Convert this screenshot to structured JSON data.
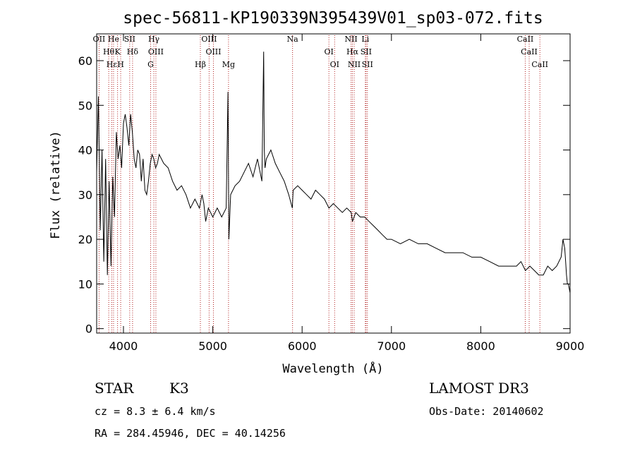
{
  "title": "spec-56811-KP190339N395439V01_sp03-072.fits",
  "footer": {
    "class_label": "STAR",
    "subclass_label": "K3",
    "survey": "LAMOST DR3",
    "cz": "cz = 8.3 ± 6.4 km/s",
    "obs_date": "Obs-Date: 20140602",
    "coords": "RA = 284.45946, DEC =  40.14256"
  },
  "colors": {
    "spectrum": "#000000",
    "line_marker": "#b22222",
    "axis": "#000000"
  },
  "chart_data": {
    "type": "line",
    "xlabel": "Wavelength (Å)",
    "ylabel": "Flux (relative)",
    "xlim": [
      3700,
      9000
    ],
    "ylim": [
      -1,
      66
    ],
    "xticks": [
      4000,
      5000,
      6000,
      7000,
      8000,
      9000
    ],
    "yticks": [
      0,
      10,
      20,
      30,
      40,
      50,
      60
    ],
    "grid": false,
    "legend": "none",
    "series": [
      {
        "x": [
          3700,
          3720,
          3740,
          3760,
          3780,
          3800,
          3820,
          3840,
          3860,
          3880,
          3900,
          3920,
          3940,
          3960,
          3980,
          4000,
          4020,
          4040,
          4060,
          4080,
          4100,
          4120,
          4140,
          4160,
          4180,
          4200,
          4220,
          4240,
          4260,
          4280,
          4300,
          4320,
          4340,
          4360,
          4380,
          4400,
          4450,
          4500,
          4550,
          4600,
          4650,
          4700,
          4750,
          4800,
          4850,
          4880,
          4900,
          4920,
          4950,
          5000,
          5050,
          5100,
          5150,
          5170,
          5180,
          5200,
          5250,
          5300,
          5350,
          5400,
          5450,
          5500,
          5550,
          5570,
          5577,
          5585,
          5600,
          5650,
          5700,
          5750,
          5800,
          5850,
          5890,
          5900,
          5950,
          6000,
          6050,
          6100,
          6150,
          6200,
          6250,
          6300,
          6350,
          6400,
          6450,
          6500,
          6550,
          6563,
          6600,
          6650,
          6700,
          6750,
          6800,
          6850,
          6900,
          6950,
          7000,
          7100,
          7200,
          7300,
          7400,
          7500,
          7600,
          7700,
          7800,
          7900,
          8000,
          8100,
          8200,
          8300,
          8400,
          8450,
          8500,
          8550,
          8600,
          8650,
          8700,
          8750,
          8800,
          8850,
          8900,
          8920,
          8940,
          8950,
          8960,
          8970,
          8980,
          9000
        ],
        "y": [
          35,
          52,
          22,
          40,
          15,
          38,
          12,
          33,
          14,
          34,
          25,
          44,
          38,
          41,
          36,
          46,
          48,
          45,
          41,
          48,
          44,
          38,
          36,
          40,
          39,
          33,
          38,
          31,
          30,
          33,
          37,
          39,
          38,
          36,
          37,
          39,
          37,
          36,
          33,
          31,
          32,
          30,
          27,
          29,
          27,
          30,
          28,
          24,
          27,
          25,
          27,
          25,
          27,
          53,
          20,
          30,
          32,
          33,
          35,
          37,
          34,
          38,
          33,
          62,
          40,
          36,
          38,
          40,
          37,
          35,
          33,
          30,
          27,
          31,
          32,
          31,
          30,
          29,
          31,
          30,
          29,
          27,
          28,
          27,
          26,
          27,
          26,
          24,
          26,
          25,
          25,
          24,
          23,
          22,
          21,
          20,
          20,
          19,
          20,
          19,
          19,
          18,
          17,
          17,
          17,
          16,
          16,
          15,
          14,
          14,
          14,
          15,
          13,
          14,
          13,
          12,
          12,
          14,
          13,
          14,
          16,
          20,
          18,
          15,
          12,
          10,
          10,
          8
        ]
      }
    ],
    "line_markers": [
      {
        "wavelength": 3727,
        "label": "OII"
      },
      {
        "wavelength": 3835,
        "label": "Hθ"
      },
      {
        "wavelength": 3869,
        "label": "Hε"
      },
      {
        "wavelength": 3889,
        "label": "He"
      },
      {
        "wavelength": 3934,
        "label": "K"
      },
      {
        "wavelength": 3969,
        "label": "H"
      },
      {
        "wavelength": 4070,
        "label": "SII"
      },
      {
        "wavelength": 4102,
        "label": "Hδ"
      },
      {
        "wavelength": 4304,
        "label": "G"
      },
      {
        "wavelength": 4340,
        "label": "Hγ"
      },
      {
        "wavelength": 4363,
        "label": "OIII"
      },
      {
        "wavelength": 4861,
        "label": "Hβ"
      },
      {
        "wavelength": 4959,
        "label": "OIII"
      },
      {
        "wavelength": 5007,
        "label": "OIII"
      },
      {
        "wavelength": 5176,
        "label": "Mg"
      },
      {
        "wavelength": 5893,
        "label": "Na"
      },
      {
        "wavelength": 6300,
        "label": "OI"
      },
      {
        "wavelength": 6364,
        "label": "OI"
      },
      {
        "wavelength": 6548,
        "label": "NII"
      },
      {
        "wavelength": 6563,
        "label": "Hα"
      },
      {
        "wavelength": 6583,
        "label": "NII"
      },
      {
        "wavelength": 6708,
        "label": "Li"
      },
      {
        "wavelength": 6716,
        "label": "SII"
      },
      {
        "wavelength": 6731,
        "label": "SII"
      },
      {
        "wavelength": 8498,
        "label": "CaII"
      },
      {
        "wavelength": 8542,
        "label": "CaII"
      },
      {
        "wavelength": 8662,
        "label": "CaII"
      }
    ]
  }
}
